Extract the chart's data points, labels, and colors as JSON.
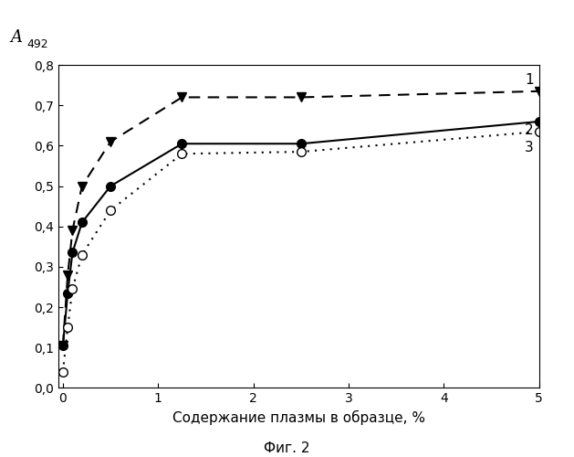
{
  "xlabel": "Содержание плазмы в образце, %",
  "caption": "Фиг. 2",
  "xlim": [
    -0.05,
    5.0
  ],
  "ylim": [
    0.0,
    0.8
  ],
  "xticks": [
    0,
    1,
    2,
    3,
    4,
    5
  ],
  "yticks": [
    0.0,
    0.1,
    0.2,
    0.3,
    0.4,
    0.5,
    0.6,
    0.7,
    0.8
  ],
  "series1": {
    "x": [
      0,
      0.05,
      0.1,
      0.2,
      0.5,
      1.25,
      2.5,
      5.0
    ],
    "y": [
      0.105,
      0.28,
      0.39,
      0.5,
      0.61,
      0.72,
      0.72,
      0.735
    ],
    "label": "1",
    "linestyle": "--",
    "marker": "v",
    "markersize": 7,
    "color": "#000000"
  },
  "series2": {
    "x": [
      0,
      0.05,
      0.1,
      0.2,
      0.5,
      1.25,
      2.5,
      5.0
    ],
    "y": [
      0.105,
      0.235,
      0.335,
      0.41,
      0.5,
      0.605,
      0.605,
      0.66
    ],
    "label": "2",
    "linestyle": "-",
    "marker": "o",
    "markersize": 7,
    "color": "#000000"
  },
  "series3": {
    "x": [
      0,
      0.05,
      0.1,
      0.2,
      0.5,
      1.25,
      2.5,
      5.0
    ],
    "y": [
      0.04,
      0.15,
      0.245,
      0.33,
      0.44,
      0.58,
      0.585,
      0.635
    ],
    "label": "3",
    "linestyle": ":",
    "marker": "o",
    "markersize": 7,
    "color": "#000000"
  },
  "label_fontsize": 11,
  "tick_fontsize": 10,
  "caption_fontsize": 11,
  "background_color": "#ffffff",
  "ylabel_A_fontsize": 13,
  "ylabel_sub_fontsize": 9
}
